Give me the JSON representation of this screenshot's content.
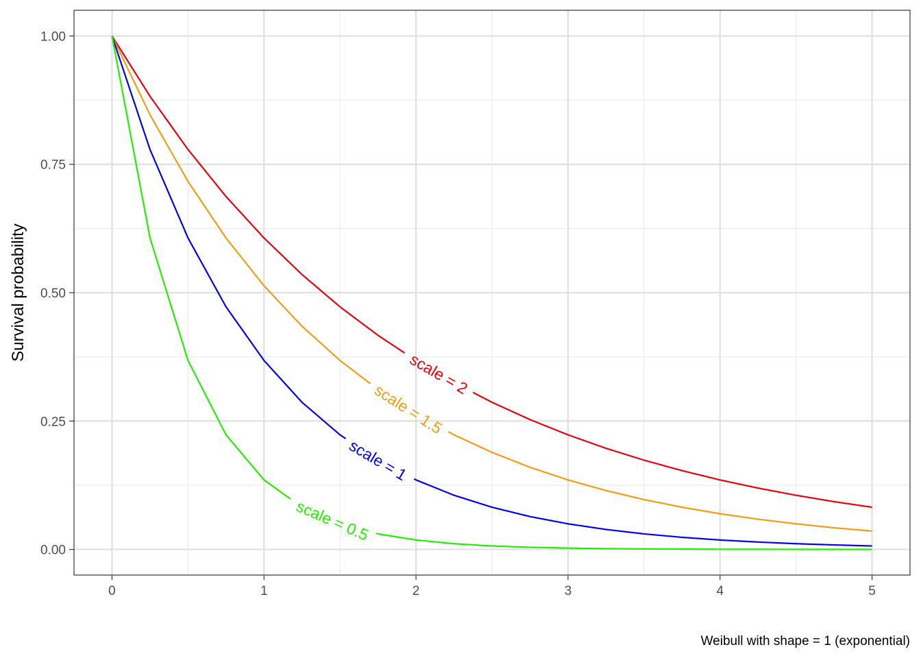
{
  "chart_data": {
    "type": "line",
    "title": "",
    "xlabel": "",
    "ylabel": "Survival probability",
    "caption": "Weibull with shape = 1 (exponential)",
    "xlim": [
      -0.25,
      5.25
    ],
    "ylim": [
      -0.05,
      1.05
    ],
    "x_ticks": [
      0,
      1,
      2,
      3,
      4,
      5
    ],
    "x_tick_labels": [
      "0",
      "1",
      "2",
      "3",
      "4",
      "5"
    ],
    "y_ticks": [
      0,
      0.25,
      0.5,
      0.75,
      1
    ],
    "y_tick_labels": [
      "0.00",
      "0.25",
      "0.50",
      "0.75",
      "1.00"
    ],
    "grid": true,
    "legend": "none (inline curve labels)",
    "series": [
      {
        "name": "scale = 2",
        "color": "#e8000b",
        "label_x": 2.15,
        "x": [
          0,
          0.25,
          0.5,
          0.75,
          1,
          1.25,
          1.5,
          1.75,
          2,
          2.25,
          2.5,
          2.75,
          3,
          3.25,
          3.5,
          3.75,
          4,
          4.25,
          4.5,
          4.75,
          5
        ],
        "values": [
          1.0,
          0.8825,
          0.7788,
          0.6873,
          0.6065,
          0.5353,
          0.4724,
          0.4169,
          0.3679,
          0.3247,
          0.2865,
          0.2528,
          0.2231,
          0.1969,
          0.1738,
          0.1534,
          0.1353,
          0.1194,
          0.1054,
          0.093,
          0.0821
        ]
      },
      {
        "name": "scale = 1.5",
        "color": "#f39c12",
        "label_x": 1.95,
        "x": [
          0,
          0.25,
          0.5,
          0.75,
          1,
          1.25,
          1.5,
          1.75,
          2,
          2.25,
          2.5,
          2.75,
          3,
          3.25,
          3.5,
          3.75,
          4,
          4.25,
          4.5,
          4.75,
          5
        ],
        "values": [
          1.0,
          0.8465,
          0.7165,
          0.6065,
          0.5134,
          0.4346,
          0.3679,
          0.3114,
          0.2636,
          0.2231,
          0.1889,
          0.1599,
          0.1353,
          0.1146,
          0.097,
          0.0821,
          0.0695,
          0.0588,
          0.0498,
          0.0421,
          0.0357
        ]
      },
      {
        "name": "scale = 1",
        "color": "#0000ee",
        "label_x": 1.75,
        "x": [
          0,
          0.25,
          0.5,
          0.75,
          1,
          1.25,
          1.5,
          1.75,
          2,
          2.25,
          2.5,
          2.75,
          3,
          3.25,
          3.5,
          3.75,
          4,
          4.25,
          4.5,
          4.75,
          5
        ],
        "values": [
          1.0,
          0.7788,
          0.6065,
          0.4724,
          0.3679,
          0.2865,
          0.2231,
          0.1738,
          0.1353,
          0.1054,
          0.0821,
          0.0639,
          0.0498,
          0.0388,
          0.0302,
          0.0235,
          0.0183,
          0.0143,
          0.0111,
          0.0087,
          0.0067
        ]
      },
      {
        "name": "scale = 0.5",
        "color": "#22ee00",
        "label_x": 1.45,
        "x": [
          0,
          0.25,
          0.5,
          0.75,
          1,
          1.25,
          1.5,
          1.75,
          2,
          2.25,
          2.5,
          2.75,
          3,
          3.25,
          3.5,
          3.75,
          4,
          4.25,
          4.5,
          4.75,
          5
        ],
        "values": [
          1.0,
          0.6065,
          0.3679,
          0.2231,
          0.1353,
          0.0821,
          0.0498,
          0.0302,
          0.0183,
          0.0111,
          0.0067,
          0.0041,
          0.0025,
          0.0015,
          0.0009,
          0.0006,
          0.0003,
          0.0002,
          0.0001,
          0.0001,
          0.0
        ]
      }
    ]
  }
}
